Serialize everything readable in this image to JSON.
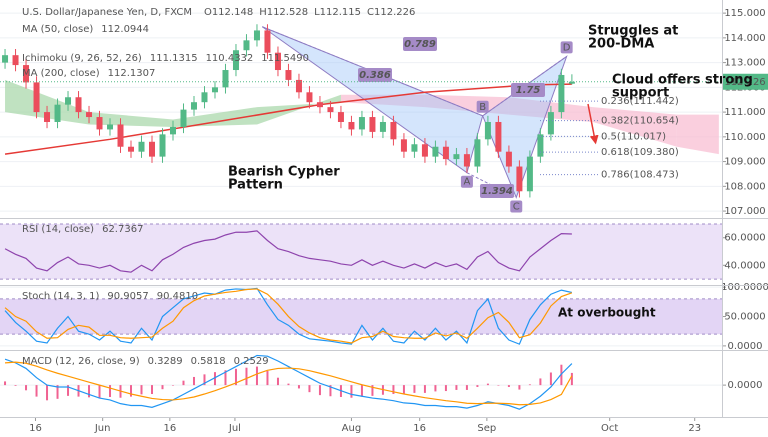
{
  "chart_data": [
    {
      "type": "candlestick",
      "title": "U.S. Dollar/Japanese Yen, D, FXCM",
      "ohlc_header": [
        "O112.148",
        "H112.528",
        "L112.115",
        "C112.226"
      ],
      "open": [
        113.0,
        113.3,
        112.9,
        112.2,
        111.0,
        110.6,
        111.3,
        111.6,
        111.0,
        110.8,
        110.3,
        110.5,
        109.6,
        109.4,
        109.8,
        109.2,
        110.1,
        110.4,
        111.1,
        111.4,
        111.8,
        112.0,
        112.7,
        113.5,
        113.9,
        114.3,
        113.4,
        112.7,
        112.3,
        111.8,
        111.4,
        111.2,
        111.0,
        110.6,
        110.3,
        110.8,
        110.2,
        110.6,
        109.9,
        109.4,
        109.7,
        109.2,
        109.6,
        109.1,
        109.3,
        108.8,
        109.9,
        110.6,
        109.4,
        108.8,
        107.8,
        109.2,
        110.1,
        111.0,
        112.148
      ],
      "high": [
        113.55,
        113.55,
        113.15,
        112.45,
        111.25,
        111.55,
        111.85,
        111.85,
        111.25,
        111.05,
        110.75,
        110.75,
        109.85,
        110.05,
        110.05,
        110.35,
        110.65,
        111.35,
        111.65,
        112.05,
        112.25,
        112.95,
        113.75,
        114.15,
        114.55,
        114.55,
        113.65,
        112.95,
        112.55,
        112.05,
        111.65,
        111.45,
        111.25,
        110.85,
        111.05,
        111.05,
        110.85,
        110.85,
        110.15,
        109.95,
        109.95,
        109.85,
        109.85,
        109.55,
        109.55,
        110.15,
        110.85,
        110.85,
        109.65,
        109.05,
        109.45,
        110.35,
        111.25,
        112.75,
        112.528
      ],
      "low": [
        112.75,
        112.65,
        111.95,
        110.75,
        110.35,
        110.35,
        111.05,
        110.75,
        110.55,
        110.05,
        110.05,
        109.35,
        109.15,
        109.15,
        108.95,
        108.95,
        109.85,
        110.15,
        110.85,
        111.15,
        111.55,
        111.75,
        112.45,
        113.25,
        113.65,
        113.15,
        112.45,
        112.05,
        111.55,
        111.15,
        110.95,
        110.75,
        110.35,
        110.05,
        110.05,
        109.95,
        109.95,
        109.65,
        109.15,
        109.15,
        108.95,
        108.95,
        108.85,
        108.85,
        108.55,
        108.55,
        109.65,
        109.15,
        108.55,
        107.55,
        107.55,
        108.95,
        109.85,
        110.75,
        112.115
      ],
      "close": [
        113.3,
        112.9,
        112.2,
        111.0,
        110.6,
        111.3,
        111.6,
        111.0,
        110.8,
        110.3,
        110.5,
        109.6,
        109.4,
        109.8,
        109.2,
        110.1,
        110.4,
        111.1,
        111.4,
        111.8,
        112.0,
        112.7,
        113.5,
        113.9,
        114.3,
        113.4,
        112.7,
        112.3,
        111.8,
        111.4,
        111.2,
        111.0,
        110.6,
        110.3,
        110.8,
        110.2,
        110.6,
        109.9,
        109.4,
        109.7,
        109.2,
        109.6,
        109.1,
        109.3,
        108.8,
        109.9,
        110.6,
        109.4,
        108.8,
        107.8,
        109.2,
        110.1,
        111.0,
        112.5,
        112.226
      ],
      "up_color": "#53b987",
      "down_color": "#eb4d5c",
      "xlim": [
        -0.48,
        68.3
      ],
      "xticks": [
        {
          "value": 2.9,
          "label": "16"
        },
        {
          "value": 9.3,
          "label": "Jun"
        },
        {
          "value": 15.7,
          "label": "16"
        },
        {
          "value": 21.9,
          "label": "Jul"
        },
        {
          "value": 33,
          "label": "Aug"
        },
        {
          "value": 39.5,
          "label": "16"
        },
        {
          "value": 45.9,
          "label": "Sep"
        },
        {
          "value": 57.6,
          "label": "Oct"
        },
        {
          "value": 65.7,
          "label": "23"
        }
      ],
      "ylim": [
        106.72,
        115.53
      ],
      "yticks": [
        {
          "value": 107,
          "label": "107.000"
        },
        {
          "value": 108,
          "label": "108.000"
        },
        {
          "value": 109,
          "label": "109.000"
        },
        {
          "value": 110,
          "label": "110.000"
        },
        {
          "value": 111,
          "label": "111.000"
        },
        {
          "value": 112,
          "label": "112.000"
        },
        {
          "value": 113,
          "label": "113.000"
        },
        {
          "value": 114,
          "label": "114.000"
        },
        {
          "value": 115,
          "label": "115.000"
        }
      ],
      "last_price": 112.226,
      "indicators": [
        {
          "name": "MA (50, close)",
          "color": "#e53935",
          "legend_values": [
            112.0944
          ]
        },
        {
          "name": "Ichimoku (9, 26, 52, 26)",
          "color": "#43a047",
          "legend_values": [
            111.1315,
            110.4332,
            {
              "value": 111.549,
              "label": "111.5490"
            }
          ]
        },
        {
          "name": "MA (200, close)",
          "color": "#e53935",
          "legend_values": [
            112.1307
          ],
          "x": [
            0,
            10,
            20,
            30,
            40,
            50,
            54
          ],
          "values": [
            109.3,
            109.9,
            110.6,
            111.3,
            111.8,
            112.1,
            112.1307
          ]
        }
      ],
      "cloud": {
        "x": [
          0,
          8,
          16,
          24,
          32,
          40,
          48,
          56,
          64,
          68
        ],
        "span_a": [
          112.3,
          111.0,
          110.7,
          111.2,
          111.4,
          111.2,
          110.9,
          110.6,
          109.6,
          109.3
        ],
        "span_b": [
          111.0,
          110.5,
          110.4,
          110.5,
          111.7,
          111.7,
          111.6,
          111.2,
          110.9,
          110.9
        ],
        "up_color": "#a5d6a7",
        "down_color": "#f8bbd0"
      },
      "pattern": {
        "points": [
          {
            "x": 24.5,
            "y": 114.45
          },
          {
            "label": "A",
            "x": 44,
            "y": 108.55
          },
          {
            "label": "B",
            "x": 45.5,
            "y": 110.85
          },
          {
            "label": "C",
            "x": 48.7,
            "y": 107.55
          },
          {
            "label": "D",
            "x": 53.5,
            "y": 113.25
          }
        ],
        "ratios": [
          0.789,
          0.386,
          1.75,
          1.394
        ]
      },
      "fib": [
        {
          "value": 111.442,
          "label": "0.236(111.442)"
        },
        {
          "value": 110.654,
          "label": "0.382(110.654)"
        },
        {
          "value": 110.017,
          "label": "0.5(110.017)"
        },
        {
          "value": 109.38,
          "label": "0.618(109.380)"
        },
        {
          "value": 108.473,
          "label": "0.786(108.473)"
        }
      ],
      "annotations": [
        [
          "Struggles at",
          "200-DMA"
        ],
        [
          "Cloud offers strong",
          "support"
        ],
        [
          "Bearish Cypher",
          "Pattern"
        ]
      ]
    },
    {
      "type": "line",
      "title": "RSI (14, close)",
      "ylim": [
        25.7,
        73.6
      ],
      "yticks": [
        {
          "value": 40,
          "label": "40.0000"
        },
        {
          "value": 60,
          "label": "60.0000"
        }
      ],
      "band": [
        30,
        70
      ],
      "band_color": "#ece2f8",
      "series": [
        {
          "color": "#8e44ad",
          "legend_values": [
            62.7367
          ],
          "values": [
            52,
            48,
            45,
            38,
            36,
            42,
            46,
            41,
            40,
            38,
            40,
            36,
            35,
            40,
            36,
            44,
            48,
            53,
            56,
            58,
            59,
            62,
            64,
            64,
            65,
            58,
            52,
            50,
            47,
            45,
            44,
            43,
            41,
            40,
            44,
            40,
            43,
            40,
            38,
            41,
            38,
            42,
            39,
            41,
            37,
            46,
            50,
            42,
            38,
            36,
            46,
            52,
            58,
            63,
            62.7367
          ]
        }
      ]
    },
    {
      "type": "line",
      "title": "Stoch (14, 3, 1)",
      "ylim": [
        -7,
        102
      ],
      "yticks": [
        {
          "value": 0,
          "label": "0.0000"
        },
        {
          "value": 50,
          "label": "50.0000"
        },
        {
          "value": 100,
          "label": "100.0000"
        }
      ],
      "band": [
        20,
        80
      ],
      "band_color": "#e3d5f5",
      "series": [
        {
          "color": "#2196f3",
          "legend_values": [
            90.9057
          ],
          "values": [
            60,
            40,
            25,
            8,
            5,
            30,
            50,
            25,
            20,
            10,
            25,
            8,
            5,
            30,
            10,
            50,
            65,
            80,
            85,
            90,
            88,
            95,
            97,
            96,
            98,
            70,
            45,
            35,
            20,
            12,
            10,
            8,
            5,
            3,
            35,
            10,
            30,
            8,
            5,
            25,
            10,
            30,
            10,
            25,
            5,
            60,
            80,
            30,
            10,
            3,
            45,
            70,
            88,
            95,
            90.9057
          ]
        },
        {
          "color": "#ff9800",
          "legend_values": [
            {
              "value": 90.481,
              "label": "90.4810"
            }
          ],
          "values": [
            65,
            50,
            42,
            24,
            13,
            14,
            28,
            35,
            32,
            18,
            18,
            14,
            13,
            14,
            15,
            30,
            42,
            65,
            77,
            85,
            88,
            91,
            93,
            96,
            97,
            88,
            71,
            50,
            33,
            22,
            14,
            10,
            8,
            5,
            14,
            16,
            25,
            16,
            14,
            13,
            13,
            22,
            17,
            22,
            13,
            30,
            48,
            57,
            40,
            14,
            19,
            39,
            68,
            84,
            90.481
          ]
        }
      ],
      "annotations": [
        [
          "At overbought"
        ]
      ]
    },
    {
      "type": "line",
      "title": "MACD (12, 26, close, 9)",
      "ylim": [
        -0.86,
        0.92
      ],
      "yticks": [
        {
          "value": 0,
          "label": "0.0000"
        }
      ],
      "series": [
        {
          "style": "histogram",
          "color": "#f06292",
          "legend_values": [
            0.3289
          ],
          "values": [
            0.1,
            -0.02,
            -0.14,
            -0.31,
            -0.41,
            -0.37,
            -0.29,
            -0.31,
            -0.33,
            -0.35,
            -0.32,
            -0.34,
            -0.31,
            -0.25,
            -0.24,
            -0.11,
            0,
            0.12,
            0.22,
            0.29,
            0.35,
            0.4,
            0.44,
            0.47,
            0.5,
            0.38,
            0.2,
            0.04,
            -0.09,
            -0.19,
            -0.27,
            -0.3,
            -0.32,
            -0.34,
            -0.31,
            -0.29,
            -0.26,
            -0.24,
            -0.24,
            -0.21,
            -0.21,
            -0.17,
            -0.16,
            -0.13,
            -0.13,
            -0.05,
            0.04,
            -0.01,
            -0.05,
            -0.12,
            0.02,
            0.18,
            0.34,
            0.55,
            0.3289
          ]
        },
        {
          "color": "#2196f3",
          "legend_values": [
            0.5818
          ],
          "values": [
            0.7,
            0.6,
            0.45,
            0.2,
            0,
            -0.05,
            -0.05,
            -0.15,
            -0.25,
            -0.35,
            -0.4,
            -0.5,
            -0.55,
            -0.55,
            -0.6,
            -0.5,
            -0.4,
            -0.25,
            -0.1,
            0.05,
            0.2,
            0.35,
            0.5,
            0.65,
            0.8,
            0.78,
            0.65,
            0.5,
            0.35,
            0.2,
            0.05,
            -0.05,
            -0.15,
            -0.25,
            -0.3,
            -0.35,
            -0.38,
            -0.42,
            -0.48,
            -0.5,
            -0.55,
            -0.55,
            -0.58,
            -0.58,
            -0.62,
            -0.55,
            -0.45,
            -0.5,
            -0.55,
            -0.65,
            -0.5,
            -0.3,
            -0.05,
            0.3,
            0.5818
          ]
        },
        {
          "color": "#ff9800",
          "legend_values": [
            0.2529
          ],
          "values": [
            0.6,
            0.62,
            0.59,
            0.51,
            0.41,
            0.32,
            0.24,
            0.16,
            0.08,
            0,
            -0.08,
            -0.16,
            -0.24,
            -0.3,
            -0.36,
            -0.39,
            -0.4,
            -0.37,
            -0.32,
            -0.24,
            -0.15,
            -0.05,
            0.06,
            0.18,
            0.3,
            0.4,
            0.45,
            0.46,
            0.44,
            0.39,
            0.32,
            0.25,
            0.17,
            0.09,
            0.01,
            -0.06,
            -0.12,
            -0.18,
            -0.24,
            -0.29,
            -0.34,
            -0.38,
            -0.42,
            -0.45,
            -0.49,
            -0.5,
            -0.49,
            -0.49,
            -0.5,
            -0.53,
            -0.52,
            -0.48,
            -0.39,
            -0.25,
            0.2529
          ]
        }
      ]
    }
  ]
}
